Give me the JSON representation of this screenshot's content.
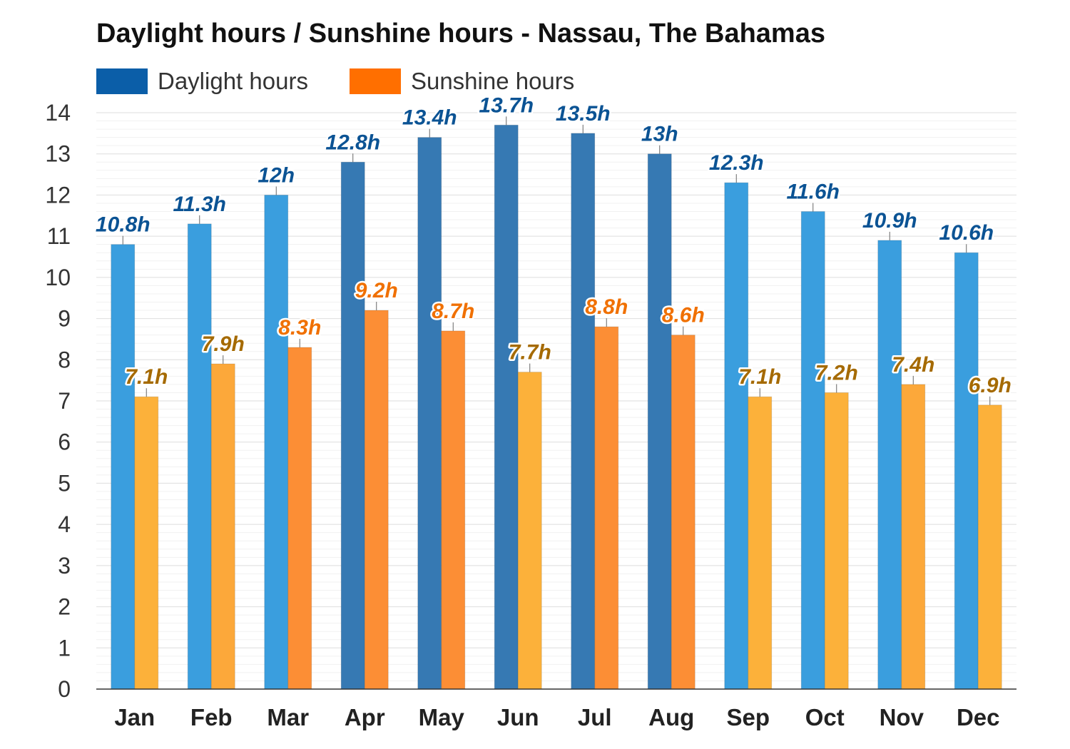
{
  "chart_data": {
    "type": "bar",
    "title": "Daylight hours / Sunshine hours - Nassau, The Bahamas",
    "categories": [
      "Jan",
      "Feb",
      "Mar",
      "Apr",
      "May",
      "Jun",
      "Jul",
      "Aug",
      "Sep",
      "Oct",
      "Nov",
      "Dec"
    ],
    "series": [
      {
        "name": "Daylight hours",
        "values": [
          10.8,
          11.3,
          12,
          12.8,
          13.4,
          13.7,
          13.5,
          13,
          12.3,
          11.6,
          10.9,
          10.6
        ],
        "labels": [
          "10.8h",
          "11.3h",
          "12h",
          "12.8h",
          "13.4h",
          "13.7h",
          "13.5h",
          "13h",
          "12.3h",
          "11.6h",
          "10.9h",
          "10.6h"
        ],
        "colors": [
          "#3a9ede",
          "#3a9ede",
          "#3a9ede",
          "#3679b3",
          "#3679b3",
          "#3679b3",
          "#3679b3",
          "#3679b3",
          "#3a9ede",
          "#3a9ede",
          "#3a9ede",
          "#3a9ede"
        ],
        "legend_color": "#0b5ea8",
        "label_color": "#0b5394"
      },
      {
        "name": "Sunshine hours",
        "values": [
          7.1,
          7.9,
          8.3,
          9.2,
          8.7,
          7.7,
          8.8,
          8.6,
          7.1,
          7.2,
          7.4,
          6.9
        ],
        "labels": [
          "7.1h",
          "7.9h",
          "8.3h",
          "9.2h",
          "8.7h",
          "7.7h",
          "8.8h",
          "8.6h",
          "7.1h",
          "7.2h",
          "7.4h",
          "6.9h"
        ],
        "colors": [
          "#fcb13a",
          "#fca83a",
          "#fc8e35",
          "#fc8e35",
          "#fc8e35",
          "#fcb13a",
          "#fc8e35",
          "#fc8e35",
          "#fcb13a",
          "#fcb13a",
          "#fca83a",
          "#fcb13a"
        ],
        "label_colors": [
          "#a56a00",
          "#a56a00",
          "#f07000",
          "#f07000",
          "#f07000",
          "#a56a00",
          "#f07000",
          "#f07000",
          "#a56a00",
          "#a56a00",
          "#a56a00",
          "#a56a00"
        ],
        "legend_color": "#ff6f00"
      }
    ],
    "ylim": [
      0,
      14
    ],
    "yticks": [
      0,
      1,
      2,
      3,
      4,
      5,
      6,
      7,
      8,
      9,
      10,
      11,
      12,
      13,
      14
    ],
    "grid": true,
    "legend_position": "top-left"
  }
}
